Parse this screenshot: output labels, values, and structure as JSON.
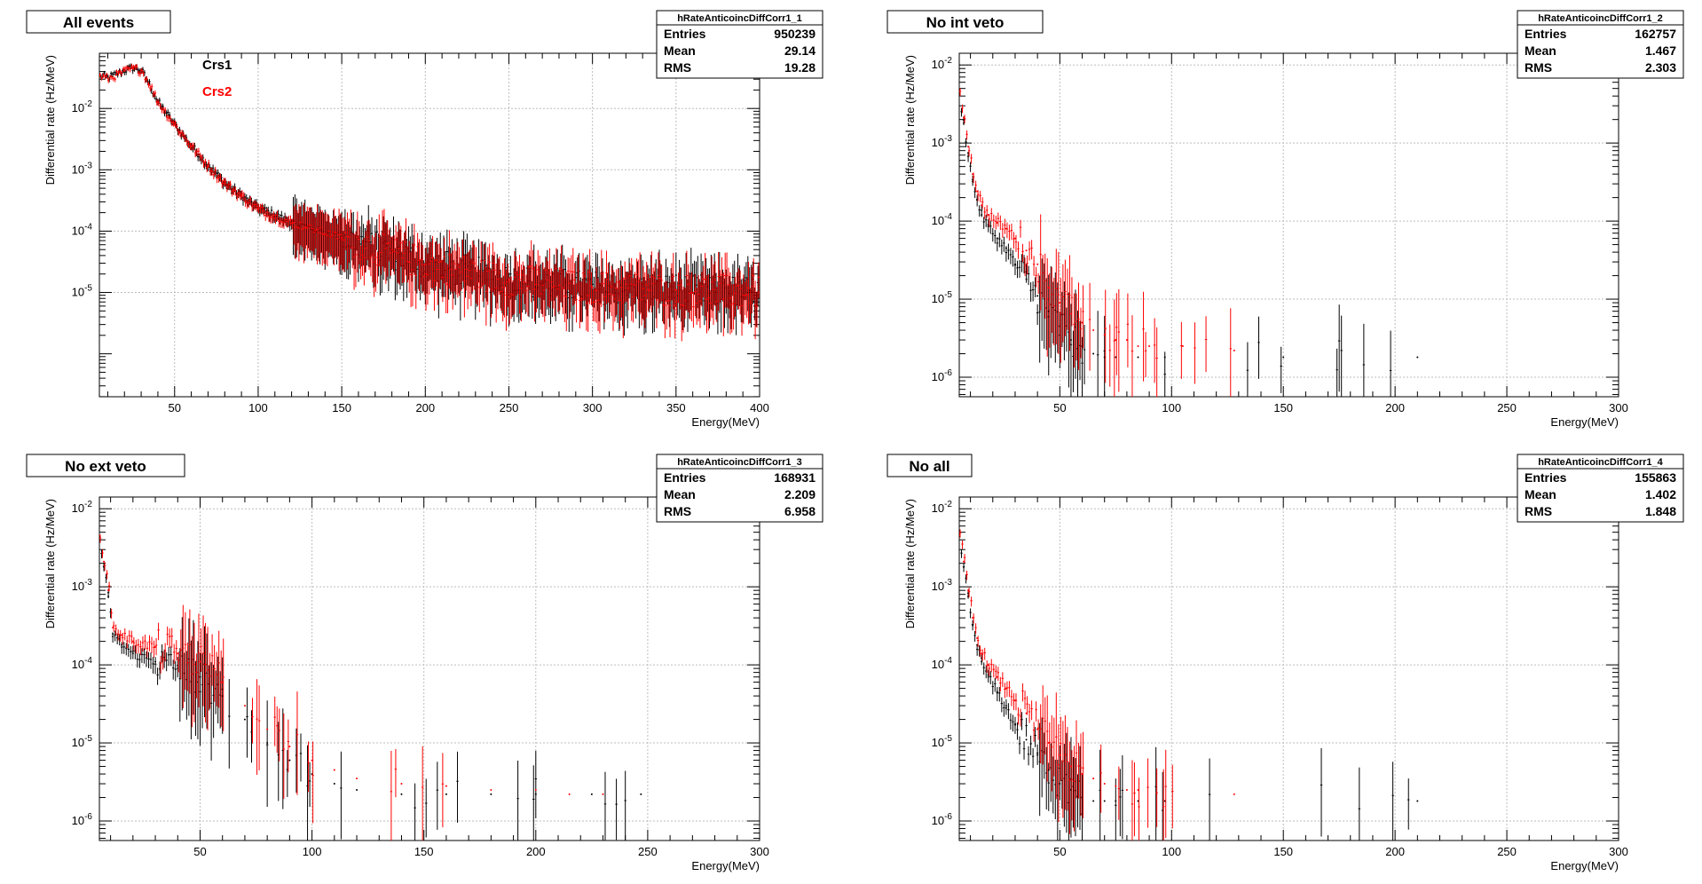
{
  "chart_data": [
    {
      "type": "scatter",
      "title": "All events",
      "xlabel": "Energy(MeV)",
      "ylabel": "Differential rate (Hz/MeV)",
      "xlim": [
        5,
        400
      ],
      "ylim_log10": [
        -6.7,
        -1.1
      ],
      "y_scale": "log",
      "grid": true,
      "x_ticks": [
        50,
        100,
        150,
        200,
        250,
        300,
        350,
        400
      ],
      "y_ticks": [
        -5,
        -4,
        -3,
        -2
      ],
      "legend": {
        "position": "top-left",
        "entries": [
          {
            "label": "Crs1",
            "color": "#000000"
          },
          {
            "label": "Crs2",
            "color": "#ff0000"
          }
        ]
      },
      "stats": {
        "name": "hRateAnticoincDiffCorr1_1",
        "Entries": "950239",
        "Mean": "29.14",
        "RMS": "19.28"
      },
      "series": [
        {
          "name": "Crs1",
          "color": "#000000",
          "x": [
            5,
            10,
            15,
            20,
            25,
            30,
            35,
            40,
            50,
            60,
            70,
            80,
            90,
            100,
            120,
            150,
            200,
            250,
            300,
            350,
            400
          ],
          "y": [
            0.035,
            0.032,
            0.036,
            0.042,
            0.046,
            0.043,
            0.025,
            0.013,
            0.0056,
            0.0025,
            0.0012,
            0.00062,
            0.00038,
            0.00024,
            0.00014,
            8e-05,
            3e-05,
            1.6e-05,
            1.2e-05,
            1.1e-05,
            1e-05
          ]
        },
        {
          "name": "Crs2",
          "color": "#ff0000",
          "x": [
            5,
            10,
            15,
            20,
            25,
            30,
            35,
            40,
            50,
            60,
            70,
            80,
            90,
            100,
            120,
            150,
            200,
            250,
            300,
            350,
            400
          ],
          "y": [
            0.034,
            0.031,
            0.035,
            0.041,
            0.045,
            0.042,
            0.024,
            0.0125,
            0.0054,
            0.0024,
            0.00115,
            0.0006,
            0.00037,
            0.00023,
            0.000135,
            7.8e-05,
            2.9e-05,
            1.6e-05,
            1.2e-05,
            1.1e-05,
            1e-05
          ]
        }
      ]
    },
    {
      "type": "scatter",
      "title": "No int veto",
      "xlabel": "Energy(MeV)",
      "ylabel": "Differential rate (Hz/MeV)",
      "xlim": [
        5,
        300
      ],
      "ylim_log10": [
        -6.25,
        -1.85
      ],
      "y_scale": "log",
      "grid": true,
      "x_ticks": [
        50,
        100,
        150,
        200,
        250,
        300
      ],
      "y_ticks": [
        -6,
        -5,
        -4,
        -3,
        -2
      ],
      "stats": {
        "name": "hRateAnticoincDiffCorr1_2",
        "Entries": "162757",
        "Mean": "1.467",
        "RMS": "2.303"
      },
      "series": [
        {
          "name": "Crs1",
          "color": "#000000",
          "x": [
            5,
            7,
            9,
            11,
            13,
            15,
            18,
            22,
            26,
            30,
            35,
            40,
            45,
            50,
            55,
            60,
            65,
            70,
            75,
            85,
            97,
            150,
            210
          ],
          "y": [
            0.0045,
            0.0018,
            0.00075,
            0.00032,
            0.00019,
            0.00012,
            8.5e-05,
            6e-05,
            4.5e-05,
            2.8e-05,
            1.8e-05,
            1.1e-05,
            7e-06,
            4.5e-06,
            3e-06,
            2.5e-06,
            2e-06,
            1.8e-06,
            1.8e-06,
            1.8e-06,
            1.8e-06,
            1.8e-06,
            1.8e-06
          ]
        },
        {
          "name": "Crs2",
          "color": "#ff0000",
          "x": [
            5,
            7,
            9,
            11,
            13,
            15,
            18,
            22,
            26,
            30,
            35,
            40,
            45,
            50,
            55,
            60,
            65,
            70,
            75,
            80,
            85,
            90,
            105,
            128
          ],
          "y": [
            0.0046,
            0.0021,
            0.0009,
            0.0004,
            0.00024,
            0.00016,
            0.00012,
            9.5e-05,
            8e-05,
            6e-05,
            4.2e-05,
            2.8e-05,
            1.4e-05,
            9e-06,
            6.5e-06,
            5e-06,
            4e-06,
            3.5e-06,
            3e-06,
            3e-06,
            2.5e-06,
            2.5e-06,
            2.5e-06,
            2.2e-06
          ]
        }
      ]
    },
    {
      "type": "scatter",
      "title": "No ext veto",
      "xlabel": "Energy(MeV)",
      "ylabel": "Differential rate (Hz/MeV)",
      "xlim": [
        5,
        300
      ],
      "ylim_log10": [
        -6.25,
        -1.85
      ],
      "y_scale": "log",
      "grid": true,
      "x_ticks": [
        50,
        100,
        150,
        200,
        250,
        300
      ],
      "y_ticks": [
        -6,
        -5,
        -4,
        -3,
        -2
      ],
      "stats": {
        "name": "hRateAnticoincDiffCorr1_3",
        "Entries": "168931",
        "Mean": "2.209",
        "RMS": "6.958"
      },
      "series": [
        {
          "name": "Crs1",
          "color": "#000000",
          "x": [
            5,
            7,
            9,
            11,
            15,
            20,
            30,
            40,
            50,
            60,
            70,
            80,
            90,
            100,
            110,
            120,
            140,
            160,
            180,
            200,
            225,
            247
          ],
          "y": [
            0.0045,
            0.0018,
            0.00075,
            0.00025,
            0.00018,
            0.00014,
            0.00011,
            9e-05,
            7e-05,
            4e-05,
            2e-05,
            1e-05,
            6e-06,
            4e-06,
            3e-06,
            2.5e-06,
            2.2e-06,
            2.2e-06,
            2.2e-06,
            2.2e-06,
            2.2e-06,
            2.2e-06
          ]
        },
        {
          "name": "Crs2",
          "color": "#ff0000",
          "x": [
            5,
            7,
            9,
            11,
            15,
            20,
            30,
            40,
            50,
            60,
            70,
            80,
            90,
            100,
            110,
            120,
            140,
            160,
            180,
            200,
            215,
            230
          ],
          "y": [
            0.0046,
            0.0021,
            0.0009,
            0.0003,
            0.00024,
            0.0002,
            0.00017,
            0.00014,
            0.00011,
            6e-05,
            3e-05,
            1.5e-05,
            9e-06,
            6e-06,
            4.5e-06,
            3.5e-06,
            3e-06,
            2.8e-06,
            2.5e-06,
            2.5e-06,
            2.2e-06,
            2.2e-06
          ]
        }
      ]
    },
    {
      "type": "scatter",
      "title": "No all",
      "xlabel": "Energy(MeV)",
      "ylabel": "Differential rate (Hz/MeV)",
      "xlim": [
        5,
        300
      ],
      "ylim_log10": [
        -6.25,
        -1.85
      ],
      "y_scale": "log",
      "grid": true,
      "x_ticks": [
        50,
        100,
        150,
        200,
        250,
        300
      ],
      "y_ticks": [
        -6,
        -5,
        -4,
        -3,
        -2
      ],
      "stats": {
        "name": "hRateAnticoincDiffCorr1_4",
        "Entries": "155863",
        "Mean": "1.402",
        "RMS": "1.848"
      },
      "series": [
        {
          "name": "Crs1",
          "color": "#000000",
          "x": [
            5,
            7,
            9,
            11,
            13,
            15,
            18,
            22,
            26,
            30,
            35,
            40,
            45,
            50,
            55,
            60,
            65,
            70,
            75,
            85,
            97,
            210
          ],
          "y": [
            0.0045,
            0.0018,
            0.00075,
            0.00032,
            0.00018,
            0.00011,
            7e-05,
            4.5e-05,
            2.8e-05,
            1.7e-05,
            1.1e-05,
            7e-06,
            4.5e-06,
            3e-06,
            2.5e-06,
            2e-06,
            1.8e-06,
            1.8e-06,
            1.8e-06,
            1.8e-06,
            1.8e-06,
            1.8e-06
          ]
        },
        {
          "name": "Crs2",
          "color": "#ff0000",
          "x": [
            5,
            7,
            9,
            11,
            13,
            15,
            18,
            22,
            26,
            30,
            35,
            40,
            45,
            50,
            55,
            60,
            65,
            70,
            75,
            80,
            85,
            128
          ],
          "y": [
            0.0046,
            0.0021,
            0.0009,
            0.0004,
            0.00022,
            0.00014,
            0.0001,
            7e-05,
            5e-05,
            3.5e-05,
            2.4e-05,
            1.5e-05,
            1e-05,
            7e-06,
            5e-06,
            4e-06,
            3.5e-06,
            3e-06,
            2.8e-06,
            2.5e-06,
            2.5e-06,
            2.2e-06
          ]
        }
      ]
    }
  ]
}
